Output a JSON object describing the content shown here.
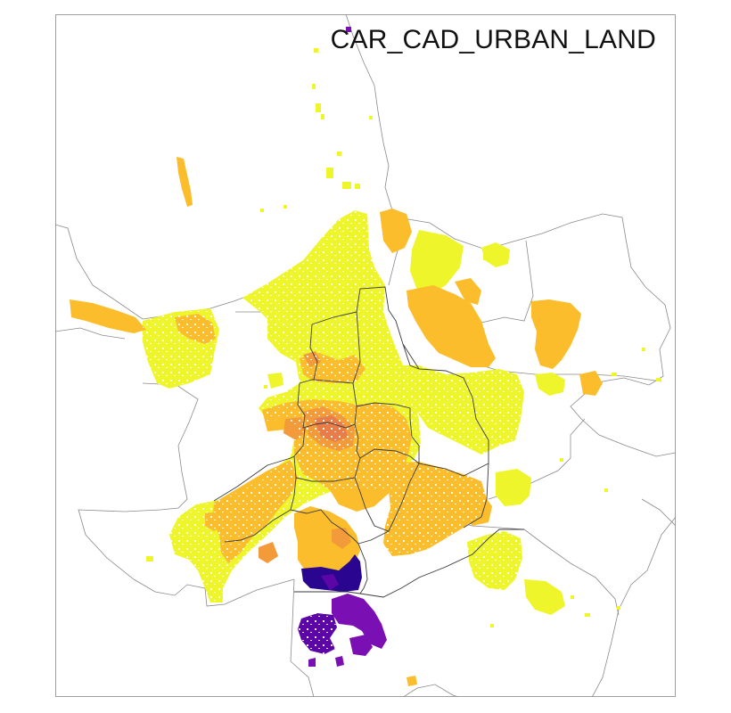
{
  "map": {
    "title": "CAR_CAD_URBAN_LAND"
  },
  "colors": {
    "yellow": "#eef52a",
    "light_orange": "#fbbd2c",
    "orange": "#f39a3a",
    "dark_orange": "#e87d4a",
    "purple": "#7a0fb4",
    "violet": "#5c06a8",
    "dark_blue": "#2a0590",
    "boundary_outer": "#8a8a8a",
    "boundary_inner": "#3a3a3a"
  }
}
